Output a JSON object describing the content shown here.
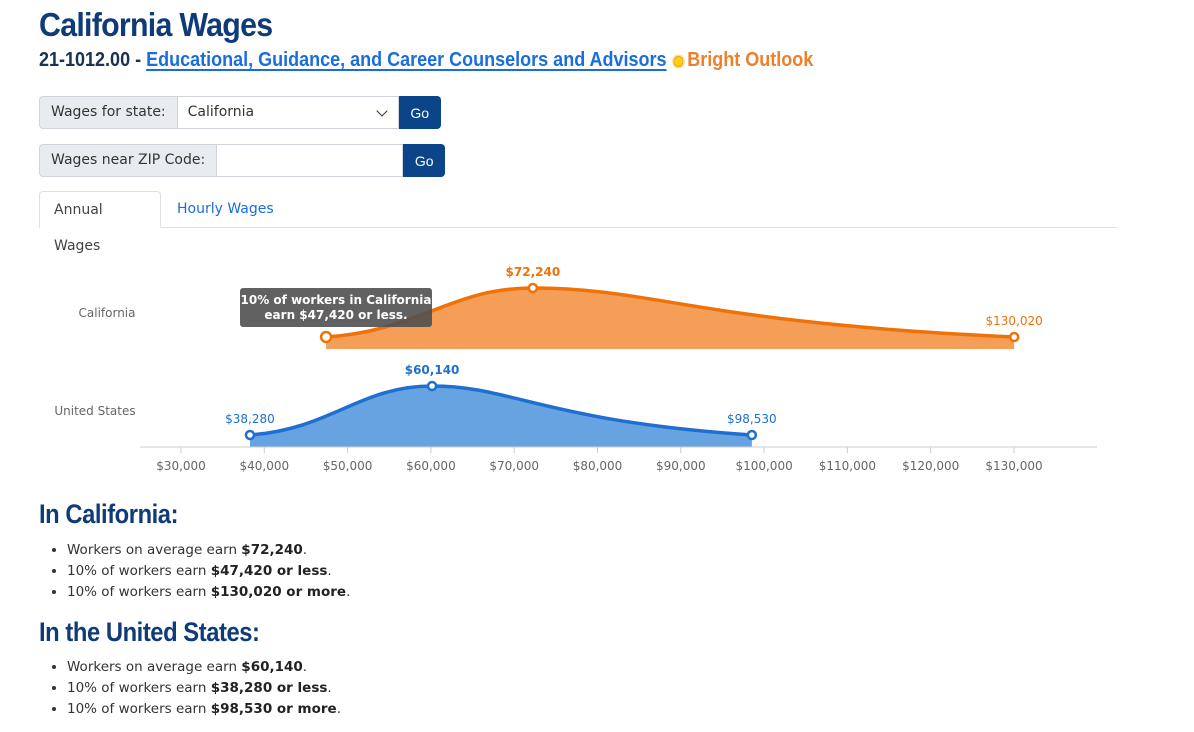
{
  "header": {
    "title": "California Wages",
    "occupation_code": "21-1012.00 - ",
    "occupation_name": "Educational, Guidance, and Career Counselors and Advisors",
    "badge_icon": "sun-icon",
    "badge_label": "Bright Outlook",
    "badge_color": "#f07f2c"
  },
  "state_form": {
    "label": "Wages for state:",
    "selected": "California",
    "go_label": "Go"
  },
  "zip_form": {
    "label": "Wages near ZIP Code:",
    "value": "",
    "placeholder": "",
    "go_label": "Go"
  },
  "tabs": [
    {
      "label": "Annual Wages",
      "active": true
    },
    {
      "label": "Hourly Wages",
      "active": false
    }
  ],
  "tooltip": {
    "line1": "10% of workers in California",
    "line2": "earn $47,420 or less."
  },
  "chart_data": {
    "type": "area",
    "title": "",
    "xlabel": "",
    "ylabel": "",
    "xlim": [
      25000,
      140000
    ],
    "x_ticks": [
      30000,
      40000,
      50000,
      60000,
      70000,
      80000,
      90000,
      100000,
      110000,
      120000,
      130000
    ],
    "x_tick_labels": [
      "$30,000",
      "$40,000",
      "$50,000",
      "$60,000",
      "$70,000",
      "$80,000",
      "$90,000",
      "$100,000",
      "$110,000",
      "$120,000",
      "$130,000"
    ],
    "grid": false,
    "legend": "none",
    "series": [
      {
        "name": "California",
        "color": "#ef7208",
        "fill": "#f59e58",
        "low": 47420,
        "low_label": "",
        "median": 72240,
        "median_label": "$72,240",
        "high": 130020,
        "high_label": "$130,020"
      },
      {
        "name": "United States",
        "color": "#1f6fd0",
        "fill": "#66a3e0",
        "low": 38280,
        "low_label": "$38,280",
        "median": 60140,
        "median_label": "$60,140",
        "high": 98530,
        "high_label": "$98,530"
      }
    ]
  },
  "sections": [
    {
      "title": "In California:",
      "facts": [
        {
          "prefix": "Workers on average earn ",
          "value": "$72,240",
          "suffix": "."
        },
        {
          "prefix": "10% of workers earn ",
          "value": "$47,420 or less",
          "suffix": "."
        },
        {
          "prefix": "10% of workers earn ",
          "value": "$130,020 or more",
          "suffix": "."
        }
      ]
    },
    {
      "title": "In the United States:",
      "facts": [
        {
          "prefix": "Workers on average earn ",
          "value": "$60,140",
          "suffix": "."
        },
        {
          "prefix": "10% of workers earn ",
          "value": "$38,280 or less",
          "suffix": "."
        },
        {
          "prefix": "10% of workers earn ",
          "value": "$98,530 or more",
          "suffix": "."
        }
      ]
    }
  ]
}
